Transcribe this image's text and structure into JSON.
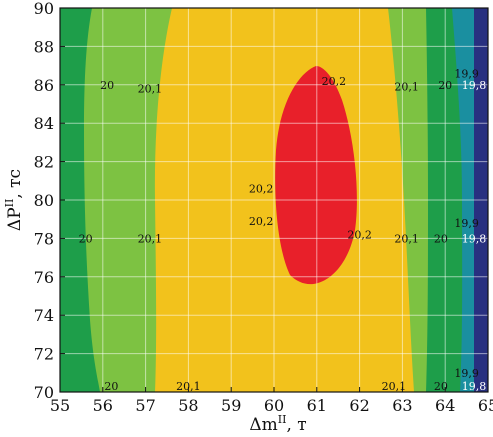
{
  "chart_data": {
    "type": "contour",
    "xlabel": "Δm",
    "xlabel_sup": "II",
    "xlabel_unit": ", т",
    "ylabel": "ΔP",
    "ylabel_sup": "II",
    "ylabel_unit": ", тс",
    "xlim": [
      55,
      65
    ],
    "ylim": [
      70,
      90
    ],
    "x_ticks": [
      "55",
      "56",
      "57",
      "58",
      "59",
      "60",
      "61",
      "62",
      "63",
      "64",
      "65"
    ],
    "y_ticks": [
      "70",
      "72",
      "74",
      "76",
      "78",
      "80",
      "82",
      "84",
      "86",
      "88",
      "90"
    ],
    "grid": true,
    "levels": [
      {
        "level": "≤19.8",
        "color": "#283080"
      },
      {
        "level": "19.8–19.9",
        "color": "#1a8fa0"
      },
      {
        "level": "19.9–20.0",
        "color": "#1e9e4a"
      },
      {
        "level": "20.0–20.1",
        "color": "#7dc242"
      },
      {
        "level": "20.1–20.2",
        "color": "#f2c21c"
      },
      {
        "level": "≥20.2",
        "color": "#e8202a"
      }
    ],
    "contour_labels": [
      {
        "text": "20",
        "x": 56.1,
        "y": 86.0
      },
      {
        "text": "20,1",
        "x": 57.1,
        "y": 85.8
      },
      {
        "text": "20,2",
        "x": 61.4,
        "y": 86.2
      },
      {
        "text": "20,1",
        "x": 63.1,
        "y": 85.9
      },
      {
        "text": "20",
        "x": 64.0,
        "y": 86.0
      },
      {
        "text": "19,9",
        "x": 64.5,
        "y": 86.6
      },
      {
        "text": "19,8",
        "x": 65.0,
        "y": 86.0
      },
      {
        "text": "20,2",
        "x": 59.7,
        "y": 80.6
      },
      {
        "text": "20,2",
        "x": 59.7,
        "y": 78.9
      },
      {
        "text": "20,2",
        "x": 62.0,
        "y": 78.2
      },
      {
        "text": "20",
        "x": 55.6,
        "y": 78.0
      },
      {
        "text": "20,1",
        "x": 57.1,
        "y": 78.0
      },
      {
        "text": "20,1",
        "x": 63.1,
        "y": 78.0
      },
      {
        "text": "20",
        "x": 63.9,
        "y": 78.0
      },
      {
        "text": "19,9",
        "x": 64.5,
        "y": 78.8
      },
      {
        "text": "19,8",
        "x": 65.0,
        "y": 78.0
      },
      {
        "text": "20",
        "x": 56.2,
        "y": 70.3
      },
      {
        "text": "20,1",
        "x": 58.0,
        "y": 70.3
      },
      {
        "text": "20,1",
        "x": 62.8,
        "y": 70.3
      },
      {
        "text": "20",
        "x": 63.9,
        "y": 70.3
      },
      {
        "text": "19,9",
        "x": 64.5,
        "y": 71.0
      },
      {
        "text": "19,8",
        "x": 65.0,
        "y": 70.3
      }
    ]
  }
}
